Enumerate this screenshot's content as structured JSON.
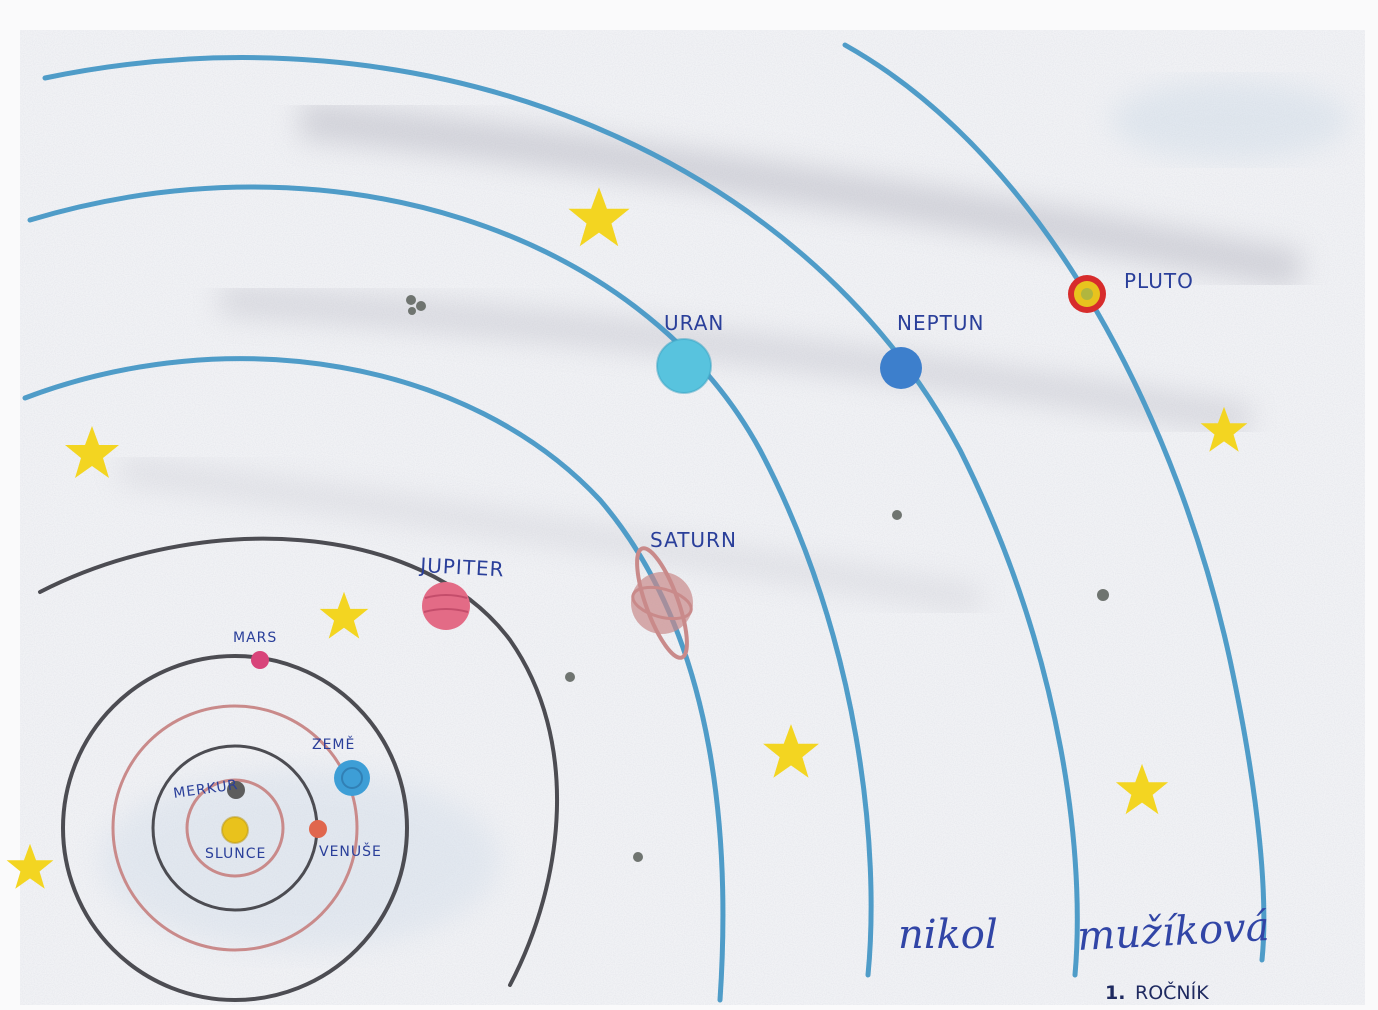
{
  "labels": {
    "sun": "SLUNCE",
    "mercury": "MERKUR",
    "venus": "VENUŠE",
    "earth": "ZEMĚ",
    "mars": "MARS",
    "jupiter": "JUPITER",
    "saturn": "SATURN",
    "uranus": "URAN",
    "neptune": "NEPTUN",
    "pluto": "PLUTO"
  },
  "signature": {
    "first_name": "nikol",
    "last_name": "mužíková",
    "grade_number": "1.",
    "grade_word": "ROČNÍK"
  },
  "colors": {
    "outer_orbits": "#4f9cc8",
    "inner_orbits": "#c98a8a",
    "gray_orbits": "#4c4c52",
    "sun": "#e9c21c",
    "mercury": "#5d5d5d",
    "venus": "#e0664d",
    "earth": "#3d9ed6",
    "mars": "#d8447a",
    "jupiter": "#e36b86",
    "saturn": "#c98a8a",
    "uranus": "#58c3de",
    "neptune": "#3d7fcc",
    "pluto_outer": "#d72c2c",
    "pluto_inner": "#e8c31e",
    "stars": "#f3d521",
    "labels": "#2a3f9a"
  }
}
